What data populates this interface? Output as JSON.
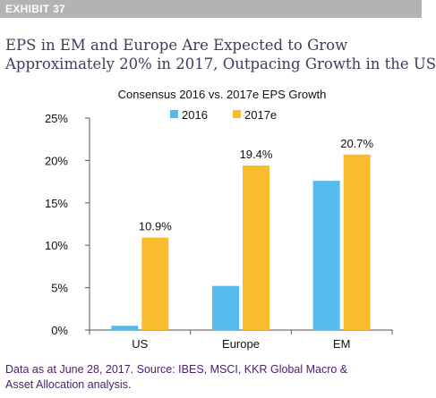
{
  "header": {
    "exhibit_label": "EXHIBIT 37",
    "headline_line1": "EPS in EM and Europe Are Expected to Grow",
    "headline_line2": "Approximately 20% in 2017, Outpacing Growth in the US"
  },
  "footnote": {
    "line1": "Data as at June 28, 2017. Source: IBES, MSCI, KKR Global Macro &",
    "line2": "Asset Allocation analysis."
  },
  "colors": {
    "series_2016": "#55bbea",
    "series_2017e": "#fbbb2f",
    "exhibit_bar": "#b3b3b3",
    "headline": "#3d3d5c",
    "footnote": "#4b2070"
  },
  "chart_data": {
    "type": "bar",
    "title": "Consensus 2016 vs. 2017e EPS Growth",
    "categories": [
      "US",
      "Europe",
      "EM"
    ],
    "series": [
      {
        "name": "2016",
        "values": [
          0.5,
          5.2,
          17.6
        ],
        "labels": [
          "",
          "",
          ""
        ]
      },
      {
        "name": "2017e",
        "values": [
          10.9,
          19.4,
          20.7
        ],
        "labels": [
          "10.9%",
          "19.4%",
          "20.7%"
        ]
      }
    ],
    "ylim": [
      0,
      25
    ],
    "yticks": [
      "0%",
      "5%",
      "10%",
      "15%",
      "20%",
      "25%"
    ],
    "ytick_values": [
      0,
      5,
      10,
      15,
      20,
      25
    ],
    "legend_position": "top",
    "grid": false
  }
}
